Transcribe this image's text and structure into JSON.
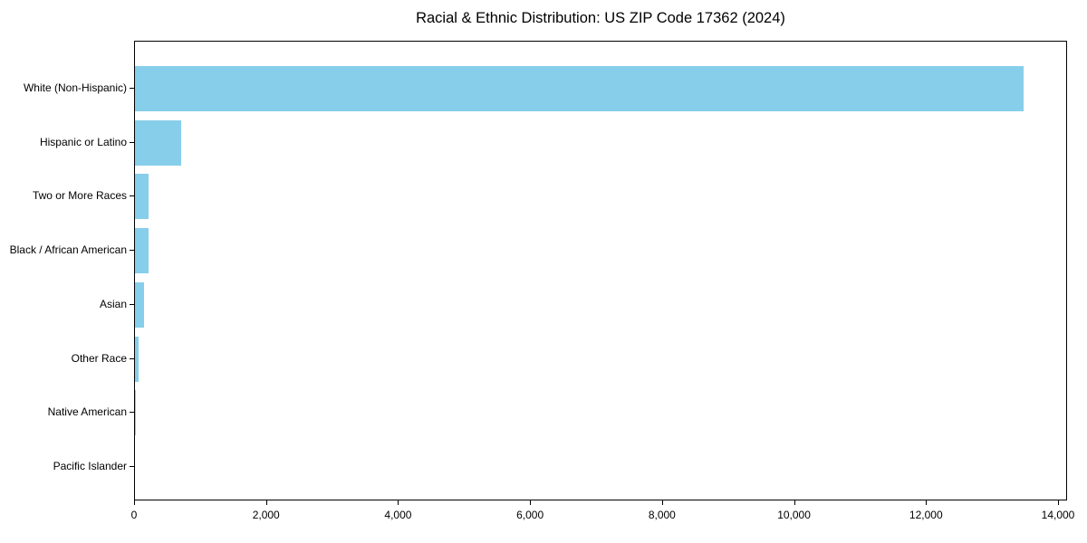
{
  "chart_data": {
    "type": "bar",
    "orientation": "horizontal",
    "title": "Racial & Ethnic Distribution: US ZIP Code 17362 (2024)",
    "xlabel": "",
    "ylabel": "",
    "categories": [
      "White (Non-Hispanic)",
      "Hispanic or Latino",
      "Two or More Races",
      "Black / African American",
      "Asian",
      "Other Race",
      "Native American",
      "Pacific Islander"
    ],
    "values": [
      13465,
      700,
      210,
      200,
      135,
      60,
      12,
      4
    ],
    "xlim": [
      0,
      14000
    ],
    "x_ticks": [
      0,
      2000,
      4000,
      6000,
      8000,
      10000,
      12000,
      14000
    ],
    "x_tick_labels": [
      "0",
      "2,000",
      "4,000",
      "6,000",
      "8,000",
      "10,000",
      "12,000",
      "14,000"
    ],
    "bar_color": "#87CEEB",
    "axis_color": "#000000",
    "background_color": "#ffffff",
    "grid": false,
    "legend_position": "none"
  }
}
